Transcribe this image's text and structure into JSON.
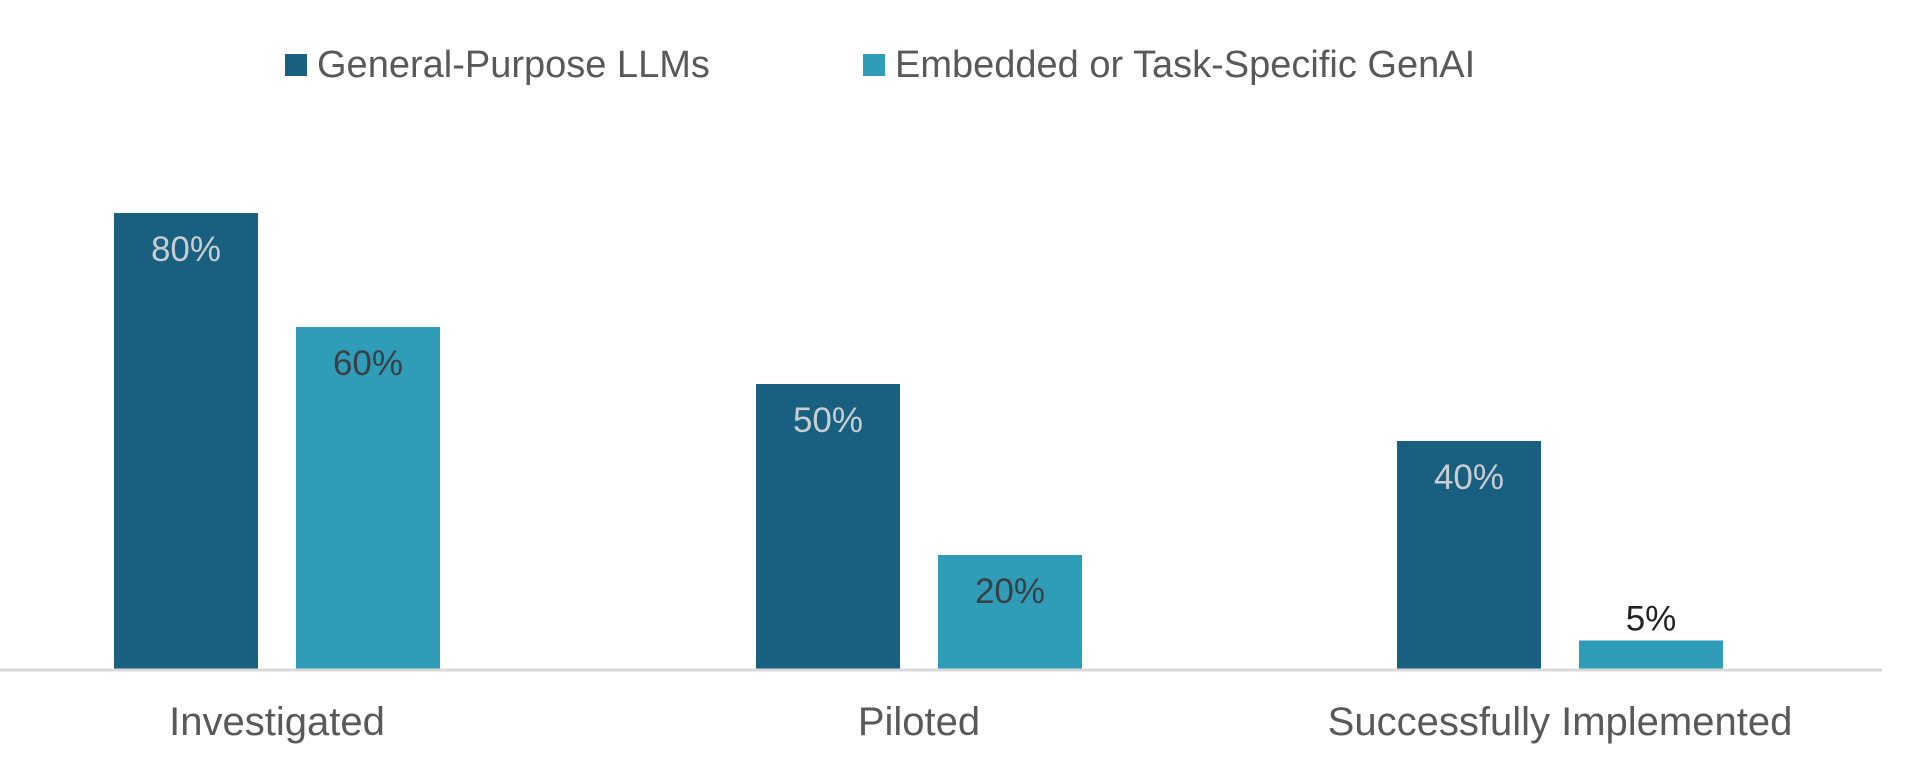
{
  "chart_data": {
    "type": "bar",
    "title": "",
    "xlabel": "",
    "ylabel": "",
    "ylim": [
      0,
      100
    ],
    "grid": false,
    "legend_position": "top-center",
    "categories": [
      "Investigated",
      "Piloted",
      "Successfully Implemented"
    ],
    "series": [
      {
        "name": "General-Purpose LLMs",
        "values": [
          80,
          50,
          40
        ],
        "labels": [
          "80%",
          "50%",
          "40%"
        ],
        "color": "#185f80",
        "label_color": "#c8cdd2"
      },
      {
        "name": "Embedded or Task-Specific GenAI",
        "values": [
          60,
          20,
          5
        ],
        "labels": [
          "60%",
          "20%",
          "5%"
        ],
        "color": "#2f9db8",
        "label_color": "#3b3f44"
      }
    ],
    "colors": {
      "axis_line": "#d9d9d9",
      "category_text": "#595959",
      "legend_text": "#595959"
    }
  }
}
